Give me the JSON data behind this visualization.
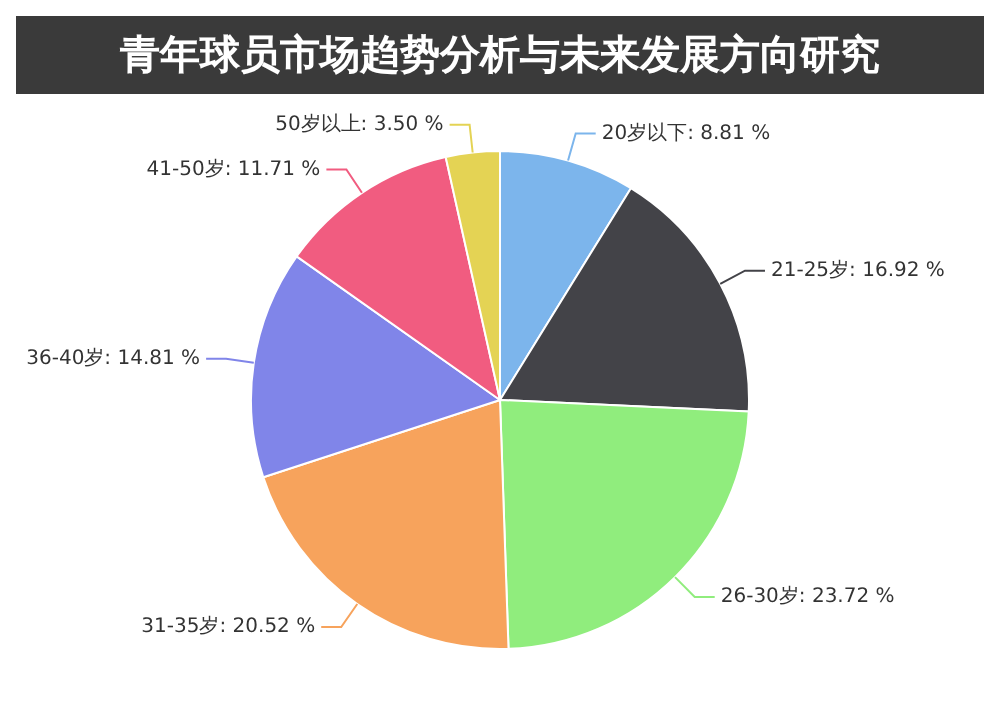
{
  "chart_data": {
    "type": "pie",
    "title": "青年球员市场趋势分析与未来发展方向研究",
    "categories": [
      "20岁以下",
      "21-25岁",
      "26-30岁",
      "31-35岁",
      "36-40岁",
      "41-50岁",
      "50岁以上"
    ],
    "values": [
      8.81,
      16.92,
      23.72,
      20.52,
      14.81,
      11.71,
      3.5
    ],
    "value_labels": [
      "8.81 %",
      "16.92 %",
      "23.72 %",
      "20.52 %",
      "14.81 %",
      "11.71 %",
      "3.50 %"
    ],
    "colors": [
      "#7cb5ec",
      "#434348",
      "#90ed7d",
      "#f7a35c",
      "#8085e9",
      "#f15c80",
      "#e4d354"
    ],
    "legend": false
  }
}
